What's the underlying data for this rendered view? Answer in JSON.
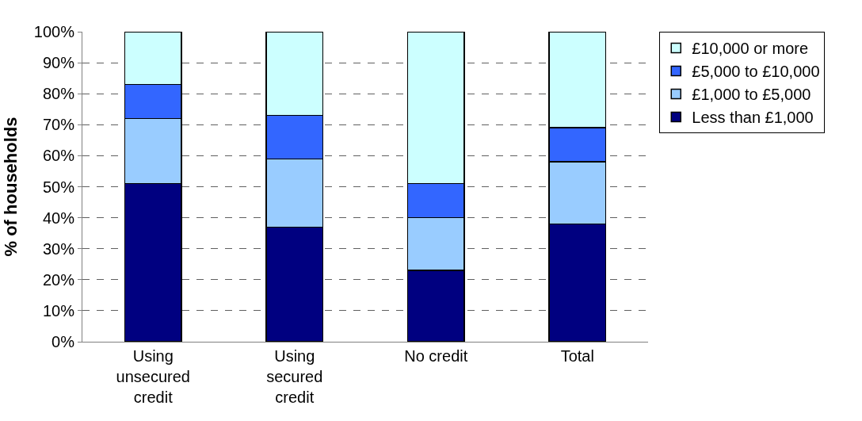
{
  "chart_data": {
    "type": "bar",
    "stacked": true,
    "ylabel": "% of households",
    "categories": [
      "Using unsecured credit",
      "Using secured credit",
      "No credit",
      "Total"
    ],
    "series": [
      {
        "name": "Less than £1,000",
        "color": "#000080",
        "values": [
          51,
          37,
          23,
          38
        ]
      },
      {
        "name": "£1,000 to £5,000",
        "color": "#99ccff",
        "values": [
          21,
          22,
          17,
          20
        ]
      },
      {
        "name": "£5,000 to £10,000",
        "color": "#3366ff",
        "values": [
          11,
          14,
          11,
          11
        ]
      },
      {
        "name": "£10,000 or more",
        "color": "#ccffff",
        "values": [
          17,
          27,
          49,
          31
        ]
      }
    ],
    "ylim": [
      0,
      100
    ],
    "yticks": [
      {
        "value": 0,
        "label": "0%"
      },
      {
        "value": 10,
        "label": "10%"
      },
      {
        "value": 20,
        "label": "20%"
      },
      {
        "value": 30,
        "label": "30%"
      },
      {
        "value": 40,
        "label": "40%"
      },
      {
        "value": 50,
        "label": "50%"
      },
      {
        "value": 60,
        "label": "60%"
      },
      {
        "value": 70,
        "label": "70%"
      },
      {
        "value": 80,
        "label": "80%"
      },
      {
        "value": 90,
        "label": "90%"
      },
      {
        "value": 100,
        "label": "100%"
      }
    ],
    "grid": "y",
    "legend": "right"
  }
}
